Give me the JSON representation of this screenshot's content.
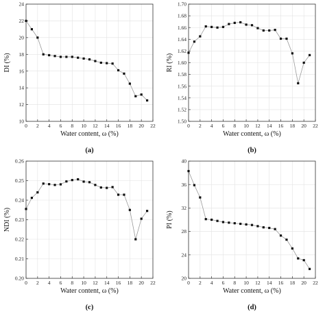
{
  "chart_data": [
    {
      "type": "line",
      "panel_label": "(a)",
      "xlabel": "Water content, ω (%)",
      "ylabel": "DI (%)",
      "xlim": [
        0,
        22
      ],
      "ylim": [
        10,
        24
      ],
      "xticks": [
        0,
        2,
        4,
        6,
        8,
        10,
        12,
        14,
        16,
        18,
        20,
        22
      ],
      "yticks": [
        10,
        12,
        14,
        16,
        18,
        20,
        22,
        24
      ],
      "grid": true,
      "x": [
        0,
        1,
        2,
        3,
        4,
        5,
        6,
        7,
        8,
        9,
        10,
        11,
        12,
        13,
        14,
        15,
        16,
        17,
        18,
        19,
        20,
        21
      ],
      "values": [
        22.0,
        21.0,
        20.0,
        18.0,
        17.9,
        17.8,
        17.7,
        17.7,
        17.7,
        17.6,
        17.5,
        17.4,
        17.2,
        17.0,
        16.95,
        16.9,
        16.1,
        15.7,
        14.5,
        13.0,
        13.2,
        12.5
      ]
    },
    {
      "type": "line",
      "panel_label": "(b)",
      "xlabel": "Water content, ω (%)",
      "ylabel": "RI (%)",
      "xlim": [
        0,
        22
      ],
      "ylim": [
        1.5,
        1.7
      ],
      "xticks": [
        0,
        2,
        4,
        6,
        8,
        10,
        12,
        14,
        16,
        18,
        20,
        22
      ],
      "yticks": [
        "1.50",
        "1.52",
        "1.54",
        "1.56",
        "1.58",
        "1.60",
        "1.62",
        "1.64",
        "1.66",
        "1.68",
        "1.70"
      ],
      "grid": true,
      "x": [
        0,
        1,
        2,
        3,
        4,
        5,
        6,
        7,
        8,
        9,
        10,
        11,
        12,
        13,
        14,
        15,
        16,
        17,
        18,
        19,
        20,
        21
      ],
      "values": [
        1.617,
        1.636,
        1.645,
        1.662,
        1.661,
        1.66,
        1.661,
        1.666,
        1.668,
        1.669,
        1.665,
        1.664,
        1.659,
        1.655,
        1.655,
        1.656,
        1.641,
        1.641,
        1.616,
        1.565,
        1.6,
        1.613
      ]
    },
    {
      "type": "line",
      "panel_label": "(c)",
      "xlabel": "Water content, ω (%)",
      "ylabel": "NDI (%)",
      "xlim": [
        0,
        22
      ],
      "ylim": [
        0.2,
        0.26
      ],
      "xticks": [
        0,
        2,
        4,
        6,
        8,
        10,
        12,
        14,
        16,
        18,
        20,
        22
      ],
      "yticks": [
        "0.20",
        "0.21",
        "0.22",
        "0.23",
        "0.24",
        "0.25",
        "0.26"
      ],
      "grid": true,
      "x": [
        0,
        1,
        2,
        3,
        4,
        5,
        6,
        7,
        8,
        9,
        10,
        11,
        12,
        13,
        14,
        15,
        16,
        17,
        18,
        19,
        20,
        21
      ],
      "values": [
        0.2355,
        0.2412,
        0.244,
        0.2485,
        0.2482,
        0.2478,
        0.2481,
        0.2496,
        0.2503,
        0.2507,
        0.2495,
        0.2492,
        0.2478,
        0.2465,
        0.2463,
        0.2467,
        0.2428,
        0.2428,
        0.235,
        0.22,
        0.2305,
        0.2345
      ]
    },
    {
      "type": "line",
      "panel_label": "(d)",
      "xlabel": "Water content, ω (%)",
      "ylabel": "PI (%)",
      "xlim": [
        0,
        22
      ],
      "ylim": [
        20,
        40
      ],
      "xticks": [
        0,
        2,
        4,
        6,
        8,
        10,
        12,
        14,
        16,
        18,
        20,
        22
      ],
      "yticks": [
        20,
        24,
        28,
        32,
        36,
        40
      ],
      "grid": true,
      "x": [
        0,
        1,
        2,
        3,
        4,
        5,
        6,
        7,
        8,
        9,
        10,
        11,
        12,
        13,
        14,
        15,
        16,
        17,
        18,
        19,
        20,
        21
      ],
      "values": [
        38.3,
        35.9,
        33.8,
        30.1,
        30.0,
        29.8,
        29.6,
        29.5,
        29.4,
        29.3,
        29.2,
        29.1,
        28.9,
        28.7,
        28.6,
        28.4,
        27.3,
        26.6,
        25.1,
        23.4,
        23.1,
        21.6
      ]
    }
  ]
}
